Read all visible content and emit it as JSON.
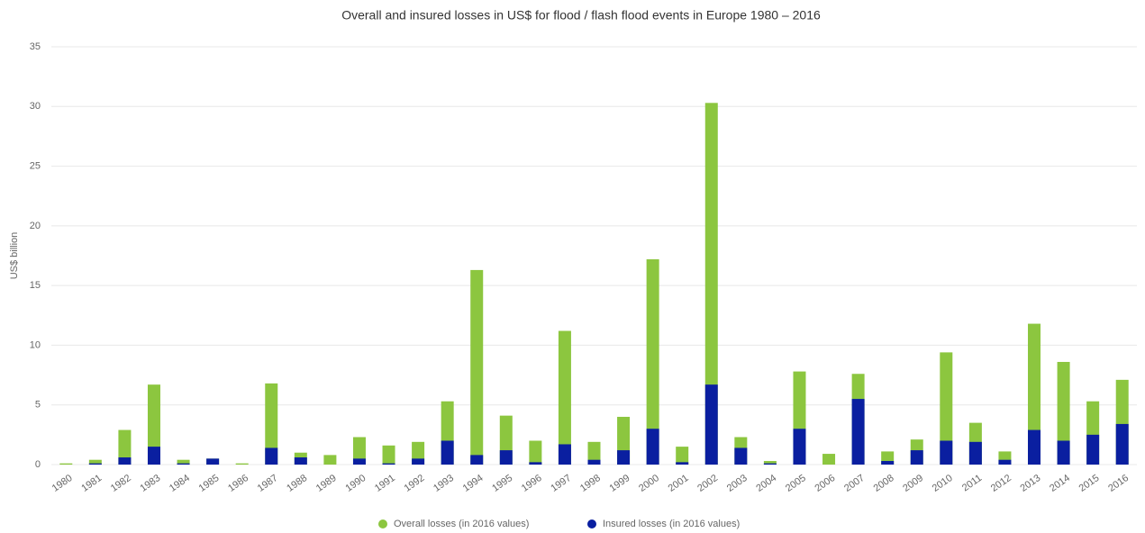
{
  "chart_data": {
    "type": "bar",
    "title": "Overall and insured losses in US$ for flood / flash flood events in Europe 1980 – 2016",
    "y_label": "US$ billion",
    "categories": [
      "1980",
      "1981",
      "1982",
      "1983",
      "1984",
      "1985",
      "1986",
      "1987",
      "1988",
      "1989",
      "1990",
      "1991",
      "1992",
      "1993",
      "1994",
      "1995",
      "1996",
      "1997",
      "1998",
      "1999",
      "2000",
      "2001",
      "2002",
      "2003",
      "2004",
      "2005",
      "2006",
      "2007",
      "2008",
      "2009",
      "2010",
      "2011",
      "2012",
      "2013",
      "2014",
      "2015",
      "2016"
    ],
    "series": [
      {
        "name": "Overall losses (in 2016 values)",
        "color": "#8cc63f",
        "values": [
          0.1,
          0.4,
          2.9,
          6.7,
          0.4,
          0.5,
          0.1,
          6.8,
          1.0,
          0.8,
          2.3,
          1.6,
          1.9,
          5.3,
          16.3,
          4.1,
          2.0,
          11.2,
          1.9,
          4.0,
          17.2,
          1.5,
          30.3,
          2.3,
          0.3,
          7.8,
          0.9,
          7.6,
          1.1,
          2.1,
          9.4,
          3.5,
          1.1,
          11.8,
          8.6,
          5.3,
          7.1
        ]
      },
      {
        "name": "Insured losses (in 2016 values)",
        "color": "#0a1fa0",
        "values": [
          0,
          0.1,
          0.6,
          1.5,
          0.1,
          0.5,
          0,
          1.4,
          0.6,
          0,
          0.5,
          0.1,
          0.5,
          2.0,
          0.8,
          1.2,
          0.2,
          1.7,
          0.4,
          1.2,
          3.0,
          0.2,
          6.7,
          1.4,
          0.1,
          3.0,
          0,
          5.5,
          0.3,
          1.2,
          2.0,
          1.9,
          0.4,
          2.9,
          2.0,
          2.5,
          3.4
        ]
      }
    ],
    "ylim": [
      0,
      35
    ],
    "yticks": [
      0,
      5,
      10,
      15,
      20,
      25,
      30,
      35
    ],
    "grid": true
  }
}
